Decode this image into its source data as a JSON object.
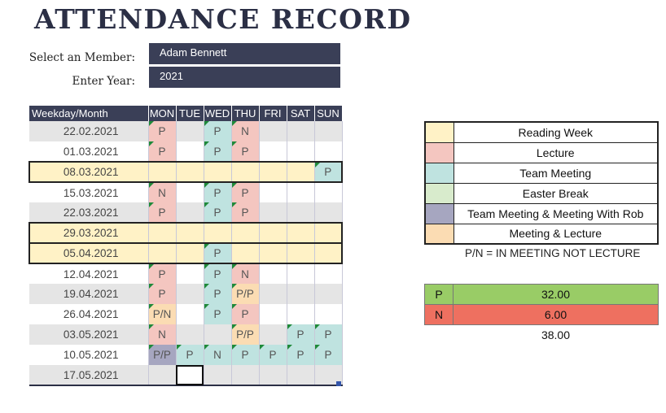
{
  "title": "ATTENDANCE RECORD",
  "member": {
    "label": "Select an Member:",
    "value": "Adam Bennett"
  },
  "year": {
    "label": "Enter Year:",
    "value": "2021"
  },
  "calendar": {
    "header": [
      "Weekday/Month",
      "MON",
      "TUE",
      "WED",
      "THU",
      "FRI",
      "SAT",
      "SUN"
    ],
    "rows": [
      {
        "date": "22.02.2021",
        "cells": [
          "P",
          "",
          "P",
          "N",
          "",
          "",
          ""
        ]
      },
      {
        "date": "01.03.2021",
        "cells": [
          "P",
          "",
          "P",
          "P",
          "",
          "",
          ""
        ]
      },
      {
        "date": "08.03.2021",
        "cells": [
          "",
          "",
          "",
          "",
          "",
          "",
          "P"
        ]
      },
      {
        "date": "15.03.2021",
        "cells": [
          "N",
          "",
          "P",
          "P",
          "",
          "",
          ""
        ]
      },
      {
        "date": "22.03.2021",
        "cells": [
          "P",
          "",
          "P",
          "P",
          "",
          "",
          ""
        ]
      },
      {
        "date": "29.03.2021",
        "cells": [
          "",
          "",
          "",
          "",
          "",
          "",
          ""
        ]
      },
      {
        "date": "05.04.2021",
        "cells": [
          "",
          "",
          "P",
          "",
          "",
          "",
          ""
        ]
      },
      {
        "date": "12.04.2021",
        "cells": [
          "P",
          "",
          "P",
          "N",
          "",
          "",
          ""
        ]
      },
      {
        "date": "19.04.2021",
        "cells": [
          "P",
          "",
          "P",
          "P/P",
          "",
          "",
          ""
        ]
      },
      {
        "date": "26.04.2021",
        "cells": [
          "P/N",
          "",
          "P",
          "P",
          "",
          "",
          ""
        ]
      },
      {
        "date": "03.05.2021",
        "cells": [
          "N",
          "",
          "",
          "P/P",
          "",
          "P",
          "P"
        ]
      },
      {
        "date": "10.05.2021",
        "cells": [
          "P/P",
          "P",
          "N",
          "P",
          "P",
          "P",
          "P"
        ]
      },
      {
        "date": "17.05.2021",
        "cells": [
          "",
          "",
          "",
          "",
          "",
          "",
          ""
        ]
      }
    ]
  },
  "legend": [
    {
      "label": "Reading Week",
      "color": "#fff2c6"
    },
    {
      "label": "Lecture",
      "color": "#f4c6c0"
    },
    {
      "label": "Team Meeting",
      "color": "#bfe3e0"
    },
    {
      "label": "Easter Break",
      "color": "#d8ebcc"
    },
    {
      "label": "Team Meeting & Meeting With Rob",
      "color": "#a6a6c0"
    },
    {
      "label": "Meeting & Lecture",
      "color": "#fbdcb3"
    }
  ],
  "note": "P/N = IN MEETING NOT LECTURE",
  "summary": [
    {
      "key": "P",
      "value": "32.00",
      "color": "#99cc66"
    },
    {
      "key": "N",
      "value": "6.00",
      "color": "#ee7060"
    }
  ],
  "total": "38.00"
}
